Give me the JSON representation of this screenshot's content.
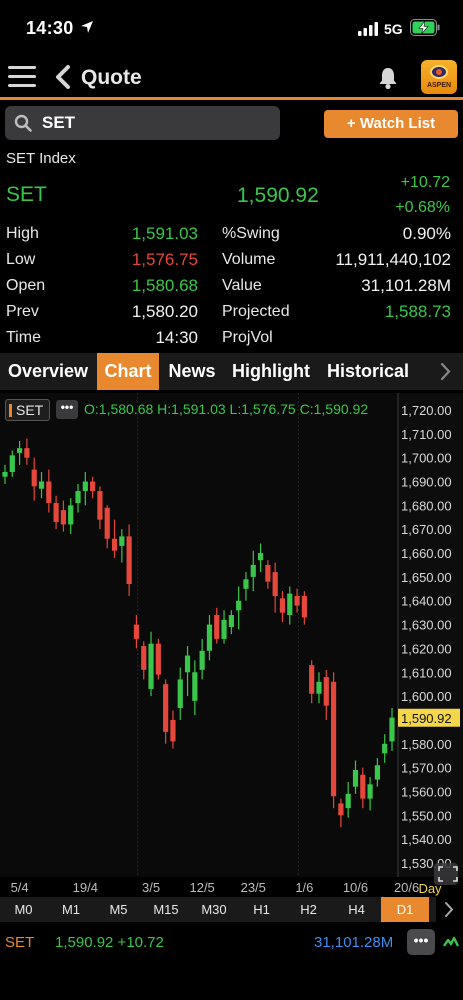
{
  "status_bar": {
    "time": "14:30",
    "network": "5G"
  },
  "nav": {
    "title": "Quote",
    "logo_text": "ASPEN"
  },
  "search": {
    "value": "SET"
  },
  "watchlist_button": "+ Watch List",
  "quote": {
    "index_name": "SET Index",
    "symbol": "SET",
    "last": "1,590.92",
    "change": "+10.72",
    "change_pct": "+0.68%",
    "rows": [
      {
        "l1": "High",
        "v1": "1,591.03",
        "c1": "green",
        "l2": "%Swing",
        "v2": "0.90%",
        "c2": "white"
      },
      {
        "l1": "Low",
        "v1": "1,576.75",
        "c1": "red",
        "l2": "Volume",
        "v2": "11,911,440,102",
        "c2": "white"
      },
      {
        "l1": "Open",
        "v1": "1,580.68",
        "c1": "green",
        "l2": "Value",
        "v2": "31,101.28M",
        "c2": "white"
      },
      {
        "l1": "Prev",
        "v1": "1,580.20",
        "c1": "white",
        "l2": "Projected",
        "v2": "1,588.73",
        "c2": "green"
      },
      {
        "l1": "Time",
        "v1": "14:30",
        "c1": "white",
        "l2": "ProjVol",
        "v2": "",
        "c2": "white"
      }
    ]
  },
  "tabs": [
    "Overview",
    "Chart",
    "News",
    "Highlight",
    "Historical"
  ],
  "active_tab": "Chart",
  "chart_header": {
    "symbol": "SET",
    "ohlc": "O:1,580.68 H:1,591.03 L:1,576.75 C:1,590.92"
  },
  "chart_data": {
    "type": "candlestick",
    "ylim": [
      1525,
      1725
    ],
    "y_ticks": [
      "1,720.00",
      "1,710.00",
      "1,700.00",
      "1,690.00",
      "1,680.00",
      "1,670.00",
      "1,660.00",
      "1,650.00",
      "1,640.00",
      "1,630.00",
      "1,620.00",
      "1,610.00",
      "1,600.00",
      "1,590.00",
      "1,580.00",
      "1,570.00",
      "1,560.00",
      "1,550.00",
      "1,540.00",
      "1,530.00"
    ],
    "y_tick_values": [
      1720,
      1710,
      1700,
      1690,
      1680,
      1670,
      1660,
      1650,
      1640,
      1630,
      1620,
      1610,
      1600,
      1590,
      1580,
      1570,
      1560,
      1550,
      1540,
      1530
    ],
    "last_price_label": "1,590.92",
    "last_price": 1590.92,
    "x_labels": [
      "5/4",
      "19/4",
      "3/5",
      "12/5",
      "23/5",
      "1/6",
      "10/6",
      "20/6"
    ],
    "x_label_index": [
      2,
      11,
      20,
      27,
      34,
      41,
      48,
      55
    ],
    "period_label": "Day",
    "candles": [
      {
        "o": 1692,
        "h": 1697,
        "l": 1689,
        "c": 1694
      },
      {
        "o": 1694,
        "h": 1703,
        "l": 1692,
        "c": 1701
      },
      {
        "o": 1702,
        "h": 1707,
        "l": 1697,
        "c": 1704
      },
      {
        "o": 1704,
        "h": 1708,
        "l": 1697,
        "c": 1700
      },
      {
        "o": 1695,
        "h": 1700,
        "l": 1682,
        "c": 1688
      },
      {
        "o": 1687,
        "h": 1694,
        "l": 1683,
        "c": 1690
      },
      {
        "o": 1690,
        "h": 1695,
        "l": 1677,
        "c": 1681
      },
      {
        "o": 1681,
        "h": 1684,
        "l": 1670,
        "c": 1673
      },
      {
        "o": 1678,
        "h": 1682,
        "l": 1669,
        "c": 1672
      },
      {
        "o": 1672,
        "h": 1683,
        "l": 1668,
        "c": 1680
      },
      {
        "o": 1681,
        "h": 1689,
        "l": 1677,
        "c": 1686
      },
      {
        "o": 1686,
        "h": 1694,
        "l": 1680,
        "c": 1690
      },
      {
        "o": 1690,
        "h": 1692,
        "l": 1683,
        "c": 1686
      },
      {
        "o": 1686,
        "h": 1688,
        "l": 1670,
        "c": 1674
      },
      {
        "o": 1679,
        "h": 1680,
        "l": 1662,
        "c": 1666
      },
      {
        "o": 1666,
        "h": 1674,
        "l": 1658,
        "c": 1661
      },
      {
        "o": 1663,
        "h": 1670,
        "l": 1656,
        "c": 1667
      },
      {
        "o": 1667,
        "h": 1672,
        "l": 1642,
        "c": 1647
      },
      {
        "o": 1630,
        "h": 1634,
        "l": 1620,
        "c": 1624
      },
      {
        "o": 1621,
        "h": 1623,
        "l": 1607,
        "c": 1611
      },
      {
        "o": 1603,
        "h": 1627,
        "l": 1600,
        "c": 1622
      },
      {
        "o": 1622,
        "h": 1624,
        "l": 1607,
        "c": 1609
      },
      {
        "o": 1605,
        "h": 1607,
        "l": 1580,
        "c": 1585
      },
      {
        "o": 1590,
        "h": 1594,
        "l": 1578,
        "c": 1581
      },
      {
        "o": 1595,
        "h": 1612,
        "l": 1590,
        "c": 1607
      },
      {
        "o": 1610,
        "h": 1621,
        "l": 1600,
        "c": 1617
      },
      {
        "o": 1598,
        "h": 1615,
        "l": 1592,
        "c": 1610
      },
      {
        "o": 1611,
        "h": 1624,
        "l": 1607,
        "c": 1619
      },
      {
        "o": 1619,
        "h": 1634,
        "l": 1615,
        "c": 1630
      },
      {
        "o": 1634,
        "h": 1637,
        "l": 1622,
        "c": 1624
      },
      {
        "o": 1624,
        "h": 1636,
        "l": 1622,
        "c": 1632
      },
      {
        "o": 1629,
        "h": 1636,
        "l": 1626,
        "c": 1634
      },
      {
        "o": 1636,
        "h": 1646,
        "l": 1628,
        "c": 1640
      },
      {
        "o": 1645,
        "h": 1652,
        "l": 1640,
        "c": 1649
      },
      {
        "o": 1650,
        "h": 1661,
        "l": 1644,
        "c": 1655
      },
      {
        "o": 1657,
        "h": 1664,
        "l": 1652,
        "c": 1660
      },
      {
        "o": 1655,
        "h": 1657,
        "l": 1645,
        "c": 1648
      },
      {
        "o": 1652,
        "h": 1656,
        "l": 1635,
        "c": 1642
      },
      {
        "o": 1641,
        "h": 1644,
        "l": 1631,
        "c": 1635
      },
      {
        "o": 1634,
        "h": 1646,
        "l": 1630,
        "c": 1643
      },
      {
        "o": 1642,
        "h": 1645,
        "l": 1635,
        "c": 1638
      },
      {
        "o": 1642,
        "h": 1644,
        "l": 1630,
        "c": 1633
      },
      {
        "o": 1613,
        "h": 1615,
        "l": 1597,
        "c": 1601
      },
      {
        "o": 1601,
        "h": 1610,
        "l": 1597,
        "c": 1606
      },
      {
        "o": 1608,
        "h": 1611,
        "l": 1590,
        "c": 1596
      },
      {
        "o": 1606,
        "h": 1610,
        "l": 1553,
        "c": 1558
      },
      {
        "o": 1555,
        "h": 1557,
        "l": 1545,
        "c": 1550
      },
      {
        "o": 1553,
        "h": 1564,
        "l": 1549,
        "c": 1559
      },
      {
        "o": 1562,
        "h": 1573,
        "l": 1559,
        "c": 1569
      },
      {
        "o": 1567,
        "h": 1570,
        "l": 1553,
        "c": 1557
      },
      {
        "o": 1557,
        "h": 1566,
        "l": 1552,
        "c": 1563
      },
      {
        "o": 1565,
        "h": 1574,
        "l": 1562,
        "c": 1571
      },
      {
        "o": 1576,
        "h": 1584,
        "l": 1572,
        "c": 1580
      },
      {
        "o": 1581,
        "h": 1595,
        "l": 1577,
        "c": 1591
      }
    ]
  },
  "timeframes": [
    "M0",
    "M1",
    "M5",
    "M15",
    "M30",
    "H1",
    "H2",
    "H4",
    "D1"
  ],
  "active_timeframe": "D1",
  "ticker": {
    "symbol": "SET",
    "price_change": "1,590.92 +10.72",
    "value": "31,101.28M"
  },
  "colors": {
    "accent": "#e8892f",
    "up": "#39c64a",
    "down": "#e5473b",
    "link": "#3d8ef0"
  }
}
